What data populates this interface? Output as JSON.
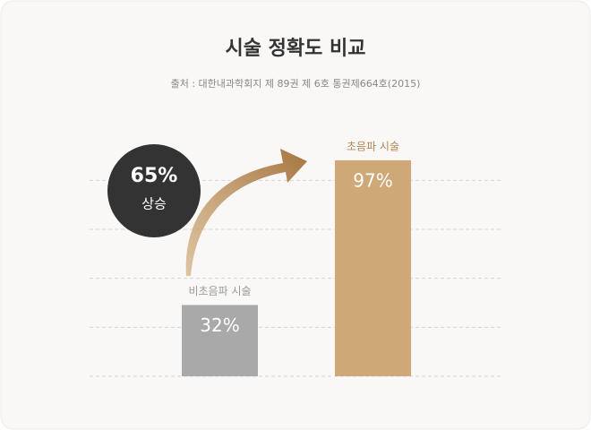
{
  "chart_data": {
    "type": "bar",
    "title": "시술 정확도 비교",
    "subtitle": "출처 : 대한내과학회지 제 89권 제 6호 통권제664호(2015)",
    "categories": [
      "비초음파 시술",
      "초음파 시술"
    ],
    "values": [
      32,
      97
    ],
    "value_labels": [
      "32%",
      "97%"
    ],
    "colors": [
      "#a9a9a9",
      "#cfa878"
    ],
    "ylim": [
      0,
      100
    ],
    "yticks": [
      0,
      22,
      44,
      66,
      88
    ],
    "grid": true,
    "annotation": {
      "text": "65%",
      "subtext": "상승"
    }
  }
}
